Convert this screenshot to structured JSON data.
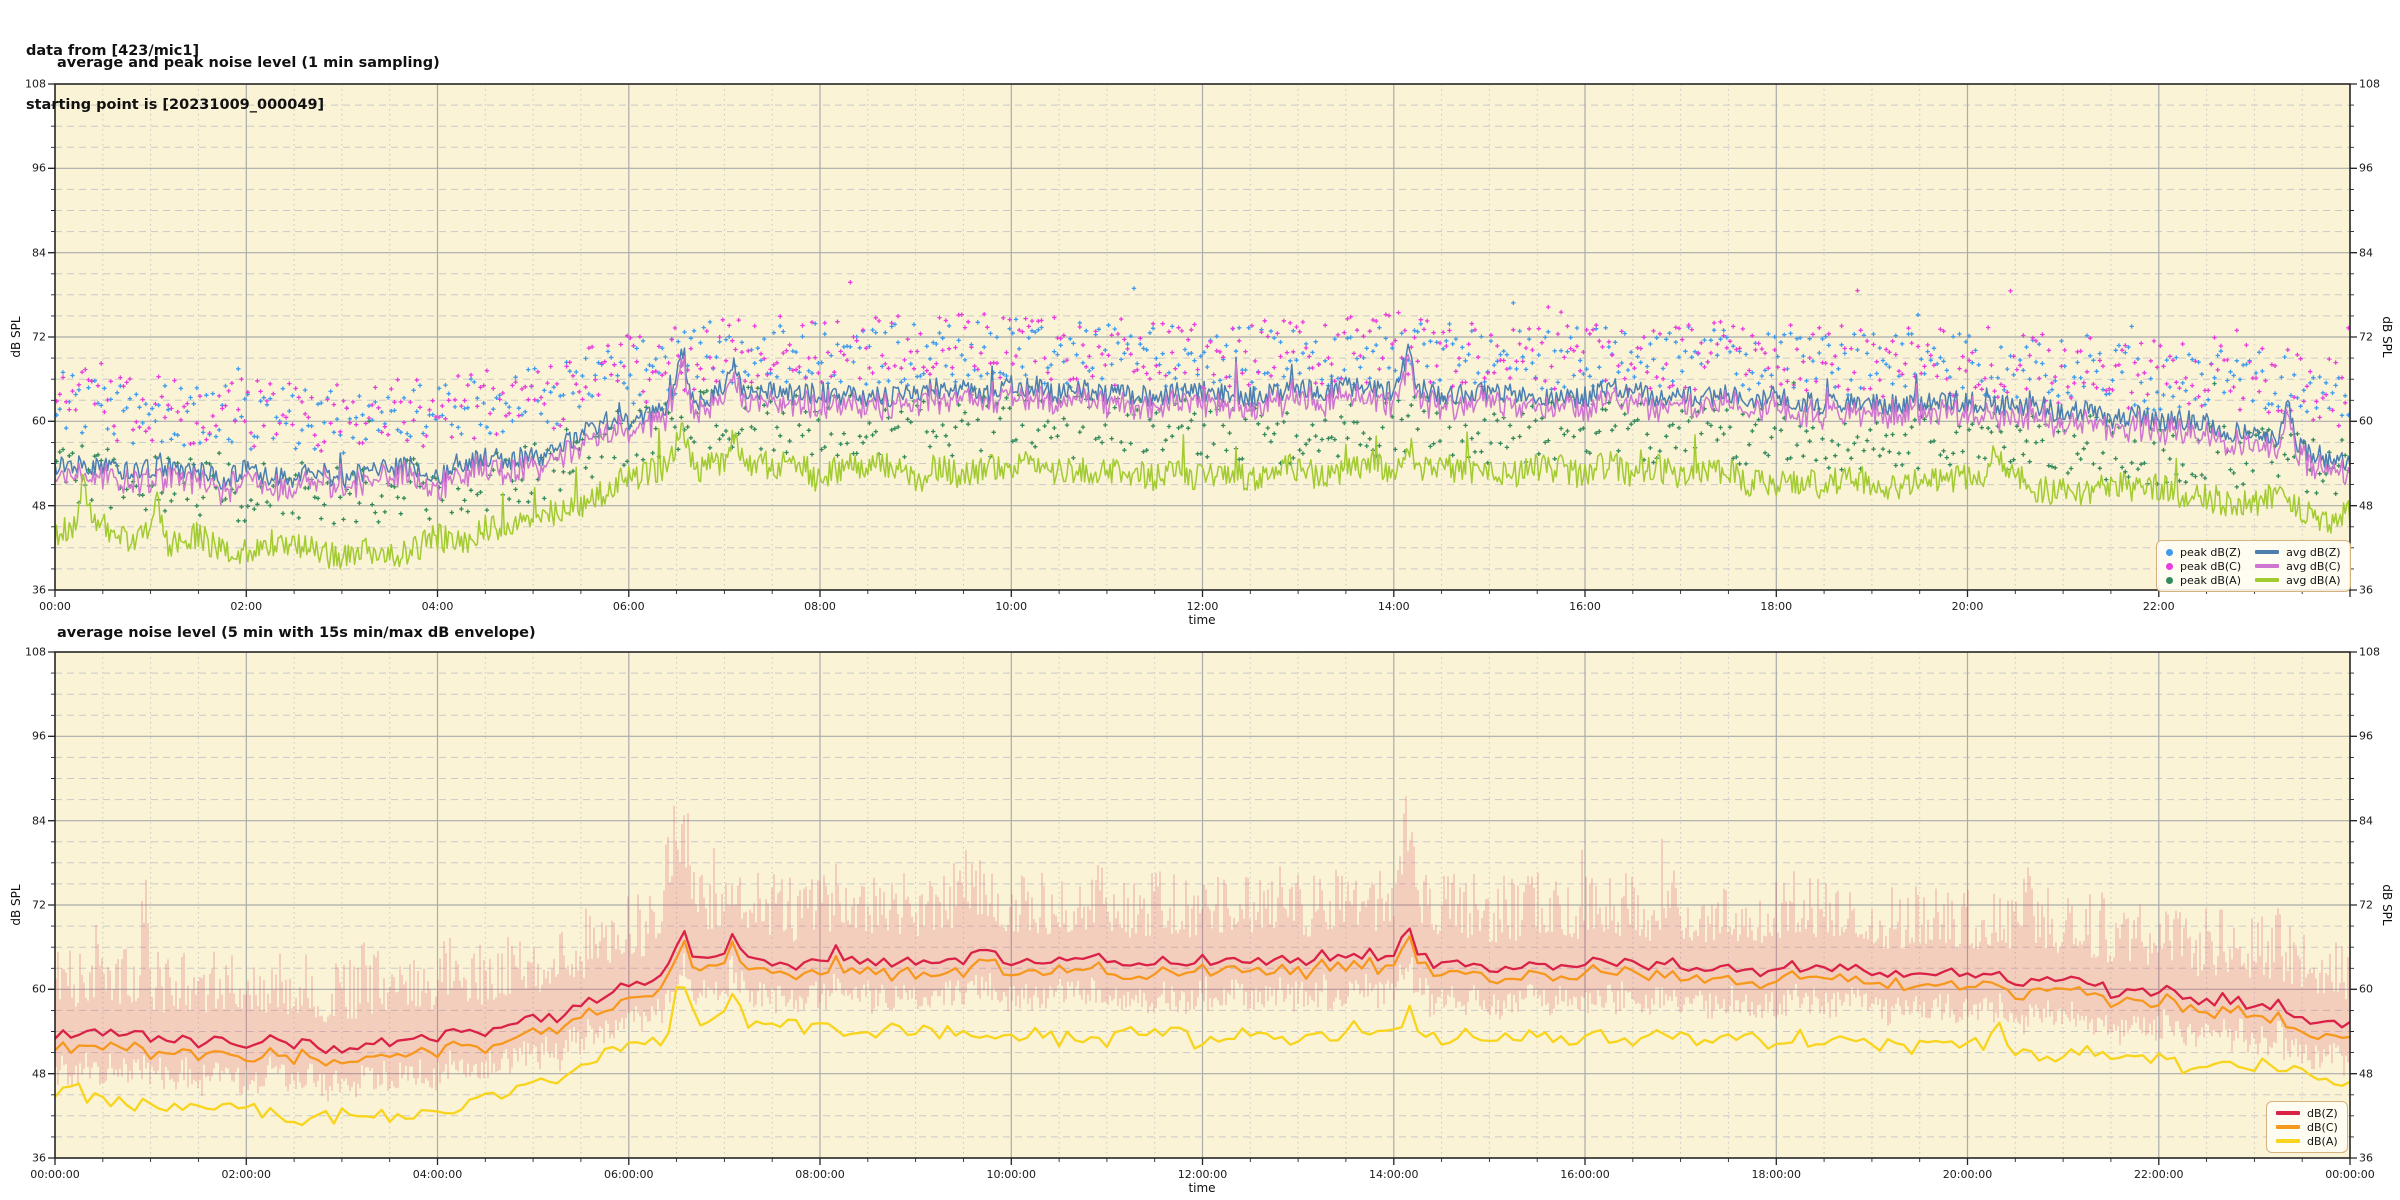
{
  "header": {
    "line1": "data from [423/mic1]",
    "line2": "starting point is [20231009_000049]"
  },
  "colors": {
    "figure_bg": "#ffffff",
    "plot_bg": "#FBF3D5",
    "grid_major": "#ABABAB",
    "grid_minor": "#C9C9C9",
    "spine": "#262626",
    "tick": "#262626",
    "legend_border": "#D8B27E",
    "legend_bg": "rgba(255,253,244,0.9)",
    "envelope": "rgba(222,80,105,0.35)"
  },
  "chart_data": [
    {
      "type": "line+scatter",
      "title": "average and peak noise level (1 min sampling)",
      "xlabel": "time",
      "ylabel_left": "dB SPL",
      "ylabel_right": "dB SPL",
      "ylim": [
        36,
        108
      ],
      "yticks": [
        36,
        48,
        60,
        72,
        84,
        96,
        108
      ],
      "y_minor_step_db": 3,
      "x_minor_step_min": 30,
      "xticks": {
        "hours": [
          0,
          2,
          4,
          6,
          8,
          10,
          12,
          14,
          16,
          18,
          20,
          22
        ],
        "labels": [
          "00:00",
          "02:00",
          "04:00",
          "06:00",
          "08:00",
          "10:00",
          "12:00",
          "14:00",
          "16:00",
          "18:00",
          "20:00",
          "22:00"
        ]
      },
      "sampling_min": 1,
      "grid": true,
      "legend": {
        "position": "lower right",
        "columns": 2,
        "entries": [
          {
            "label": "peak dB(Z)",
            "color": "#3E9BEE",
            "swatch": "dot"
          },
          {
            "label": "peak dB(C)",
            "color": "#E93CDC",
            "swatch": "dot"
          },
          {
            "label": "peak dB(A)",
            "color": "#338A5C",
            "swatch": "dot"
          },
          {
            "label": "avg dB(Z)",
            "color": "#4C7FB0",
            "swatch": "line"
          },
          {
            "label": "avg dB(C)",
            "color": "#CF76D0",
            "swatch": "line"
          },
          {
            "label": "avg dB(A)",
            "color": "#A2CB32",
            "swatch": "line"
          }
        ]
      },
      "series": [
        {
          "name": "peak dB(Z)",
          "type": "scatter",
          "color": "#3E9BEE",
          "marker": "plus",
          "keyframes_db_by_hour": [
            63,
            61,
            60.5,
            60,
            61,
            63,
            67,
            70,
            69.5,
            69.5,
            70,
            69.5,
            69,
            69,
            70,
            69,
            69,
            69,
            68.5,
            68,
            68,
            67,
            66,
            65.5,
            63.5
          ],
          "spread_db": 4.5,
          "outlier_prob": 0.025,
          "outlier_extra_db": 8
        },
        {
          "name": "peak dB(C)",
          "type": "scatter",
          "color": "#E93CDC",
          "marker": "plus",
          "keyframes_db_by_hour": [
            63.5,
            61.5,
            61,
            60.5,
            61.5,
            63.5,
            67.5,
            70,
            70,
            70,
            70.5,
            70,
            69.5,
            69.5,
            70.5,
            69.5,
            69.5,
            69.5,
            69,
            68.5,
            68.5,
            67.5,
            66.5,
            66,
            64
          ],
          "spread_db": 5.0,
          "outlier_prob": 0.03,
          "outlier_extra_db": 9
        },
        {
          "name": "peak dB(A)",
          "type": "scatter",
          "color": "#338A5C",
          "marker": "plus",
          "keyframes_db_by_hour": [
            52.5,
            51,
            50,
            49.5,
            50.5,
            53,
            58,
            60.5,
            59.5,
            59,
            59.5,
            59,
            58.5,
            58.5,
            59.5,
            58.5,
            59,
            58.5,
            58,
            57.5,
            58,
            56.5,
            55.5,
            55,
            53
          ],
          "spread_db": 4.5,
          "outlier_prob": 0.02,
          "outlier_extra_db": 7
        },
        {
          "name": "avg dB(Z)",
          "type": "line",
          "color": "#4C7FB0",
          "width": 1.5,
          "keyframes_db_by_hour": [
            54.5,
            53,
            52.5,
            52,
            53,
            55.5,
            60.5,
            64,
            64,
            64,
            64.5,
            64,
            63.5,
            64,
            64.5,
            63.5,
            64,
            63.5,
            63,
            62.5,
            62.5,
            61.5,
            60,
            58.5,
            55
          ],
          "noise_db": 1.5,
          "wander_db": 0.8,
          "extra_spike_prob": 0.012,
          "extra_spike_db": 5,
          "spikes": [
            {
              "t": 6.55,
              "amp": 8,
              "w": 0.06
            },
            {
              "t": 7.1,
              "amp": 4,
              "w": 0.05
            },
            {
              "t": 14.15,
              "amp": 5,
              "w": 0.05
            },
            {
              "t": 23.35,
              "amp": 5,
              "w": 0.04
            }
          ]
        },
        {
          "name": "avg dB(C)",
          "type": "line",
          "color": "#CF76D0",
          "width": 1.5,
          "keyframes_db_by_hour": [
            53,
            51.5,
            51,
            50.5,
            51.5,
            54,
            59,
            62.5,
            62.5,
            62.5,
            63,
            62.5,
            62,
            62.5,
            63,
            62,
            62.5,
            62,
            61.5,
            61,
            61,
            60,
            58.5,
            57,
            53.5
          ],
          "follows": "avg dB(Z)",
          "delta_jitter_db": 0.9
        },
        {
          "name": "avg dB(A)",
          "type": "line",
          "color": "#A2CB32",
          "width": 1.5,
          "keyframes_db_by_hour": [
            45,
            43.5,
            42,
            41,
            42.5,
            46,
            52,
            54.5,
            53,
            52.5,
            53,
            52.5,
            52,
            52.5,
            53.5,
            52.5,
            53,
            52.5,
            52,
            51.5,
            52.5,
            51,
            50,
            48.5,
            46.5
          ],
          "noise_db": 2.0,
          "wander_db": 1.2,
          "extra_spike_prob": 0.02,
          "extra_spike_db": 5,
          "spikes": [
            {
              "t": 0.3,
              "amp": 6,
              "w": 0.04
            },
            {
              "t": 1.05,
              "amp": 5,
              "w": 0.05
            },
            {
              "t": 6.55,
              "amp": 5,
              "w": 0.06
            },
            {
              "t": 7.1,
              "amp": 4,
              "w": 0.05
            },
            {
              "t": 14.15,
              "amp": 4,
              "w": 0.05
            },
            {
              "t": 20.3,
              "amp": 4,
              "w": 0.04
            }
          ]
        }
      ]
    },
    {
      "type": "line+envelope",
      "title": "average noise level (5 min with 15s min/max dB envelope)",
      "xlabel": "time",
      "ylabel_left": "dB SPL",
      "ylabel_right": "dB SPL",
      "ylim": [
        36,
        108
      ],
      "yticks": [
        36,
        48,
        60,
        72,
        84,
        96,
        108
      ],
      "y_minor_step_db": 3,
      "x_minor_step_min": 30,
      "xticks": {
        "hours": [
          0,
          2,
          4,
          6,
          8,
          10,
          12,
          14,
          16,
          18,
          20,
          22,
          24
        ],
        "labels": [
          "00:00:00",
          "02:00:00",
          "04:00:00",
          "06:00:00",
          "08:00:00",
          "10:00:00",
          "12:00:00",
          "14:00:00",
          "16:00:00",
          "18:00:00",
          "20:00:00",
          "22:00:00",
          "00:00:00"
        ]
      },
      "sampling_min": 5,
      "grid": true,
      "legend": {
        "position": "lower right",
        "columns": 1,
        "entries": [
          {
            "label": "dB(Z)",
            "color": "#DA2248",
            "swatch": "line"
          },
          {
            "label": "dB(C)",
            "color": "#F6981E",
            "swatch": "line"
          },
          {
            "label": "dB(A)",
            "color": "#F8D41C",
            "swatch": "line"
          }
        ]
      },
      "series": [
        {
          "name": "15s min/max envelope",
          "type": "envelope",
          "ref": "dB(Z)",
          "color": "rgba(222,80,105,0.35)",
          "above_base": 4,
          "above_var": 9,
          "below_base": 3,
          "below_var": 4,
          "spikes": [
            {
              "t": 0.95,
              "amp": 14,
              "w": 0.03
            },
            {
              "t": 6.5,
              "amp": 8,
              "w": 0.1
            },
            {
              "t": 9.5,
              "amp": 5,
              "w": 0.05
            },
            {
              "t": 14.15,
              "amp": 7,
              "w": 0.05
            },
            {
              "t": 20.6,
              "amp": 5,
              "w": 0.04
            }
          ]
        },
        {
          "name": "dB(Z)",
          "type": "line",
          "color": "#DA2248",
          "width": 2.3,
          "keyframes_db_by_hour": [
            54.5,
            53,
            52.5,
            52,
            53,
            55.5,
            60.5,
            64.5,
            64,
            64,
            64.5,
            64,
            63.5,
            64,
            64.5,
            63.5,
            64,
            63.5,
            63,
            62.5,
            62.5,
            61,
            59.5,
            58,
            54.5
          ],
          "noise_db": 0.9,
          "wander_db": 0.7,
          "extra_spike_prob": 0.008,
          "extra_spike_db": 3,
          "spikes": [
            {
              "t": 6.55,
              "amp": 5,
              "w": 0.08
            },
            {
              "t": 7.1,
              "amp": 3,
              "w": 0.06
            },
            {
              "t": 14.15,
              "amp": 4,
              "w": 0.06
            }
          ]
        },
        {
          "name": "dB(C)",
          "type": "line",
          "color": "#F6981E",
          "width": 2.3,
          "keyframes_db_by_hour": [
            52.5,
            51,
            50.5,
            50,
            51,
            53.5,
            58.5,
            63,
            62.5,
            62.5,
            63,
            62.5,
            62,
            62.5,
            63,
            62,
            62.5,
            62,
            61.5,
            61,
            61,
            59.5,
            58,
            56.5,
            52.5
          ],
          "follows": "dB(Z)",
          "delta_jitter_db": 0.5
        },
        {
          "name": "dB(A)",
          "type": "line",
          "color": "#F8D41C",
          "width": 2.3,
          "keyframes_db_by_hour": [
            45.5,
            44,
            42.5,
            41.5,
            43,
            46.5,
            52.5,
            55,
            54,
            53.5,
            54,
            53.5,
            53,
            53.5,
            54,
            53,
            53.5,
            53,
            52.5,
            52,
            52.5,
            51,
            50,
            48.5,
            46.5
          ],
          "noise_db": 1.1,
          "wander_db": 0.8,
          "extra_spike_prob": 0.01,
          "extra_spike_db": 3,
          "spikes": [
            {
              "t": 6.55,
              "amp": 8,
              "w": 0.07
            },
            {
              "t": 7.1,
              "amp": 4,
              "w": 0.06
            },
            {
              "t": 14.15,
              "amp": 4,
              "w": 0.05
            },
            {
              "t": 20.3,
              "amp": 3,
              "w": 0.05
            }
          ]
        }
      ]
    }
  ]
}
